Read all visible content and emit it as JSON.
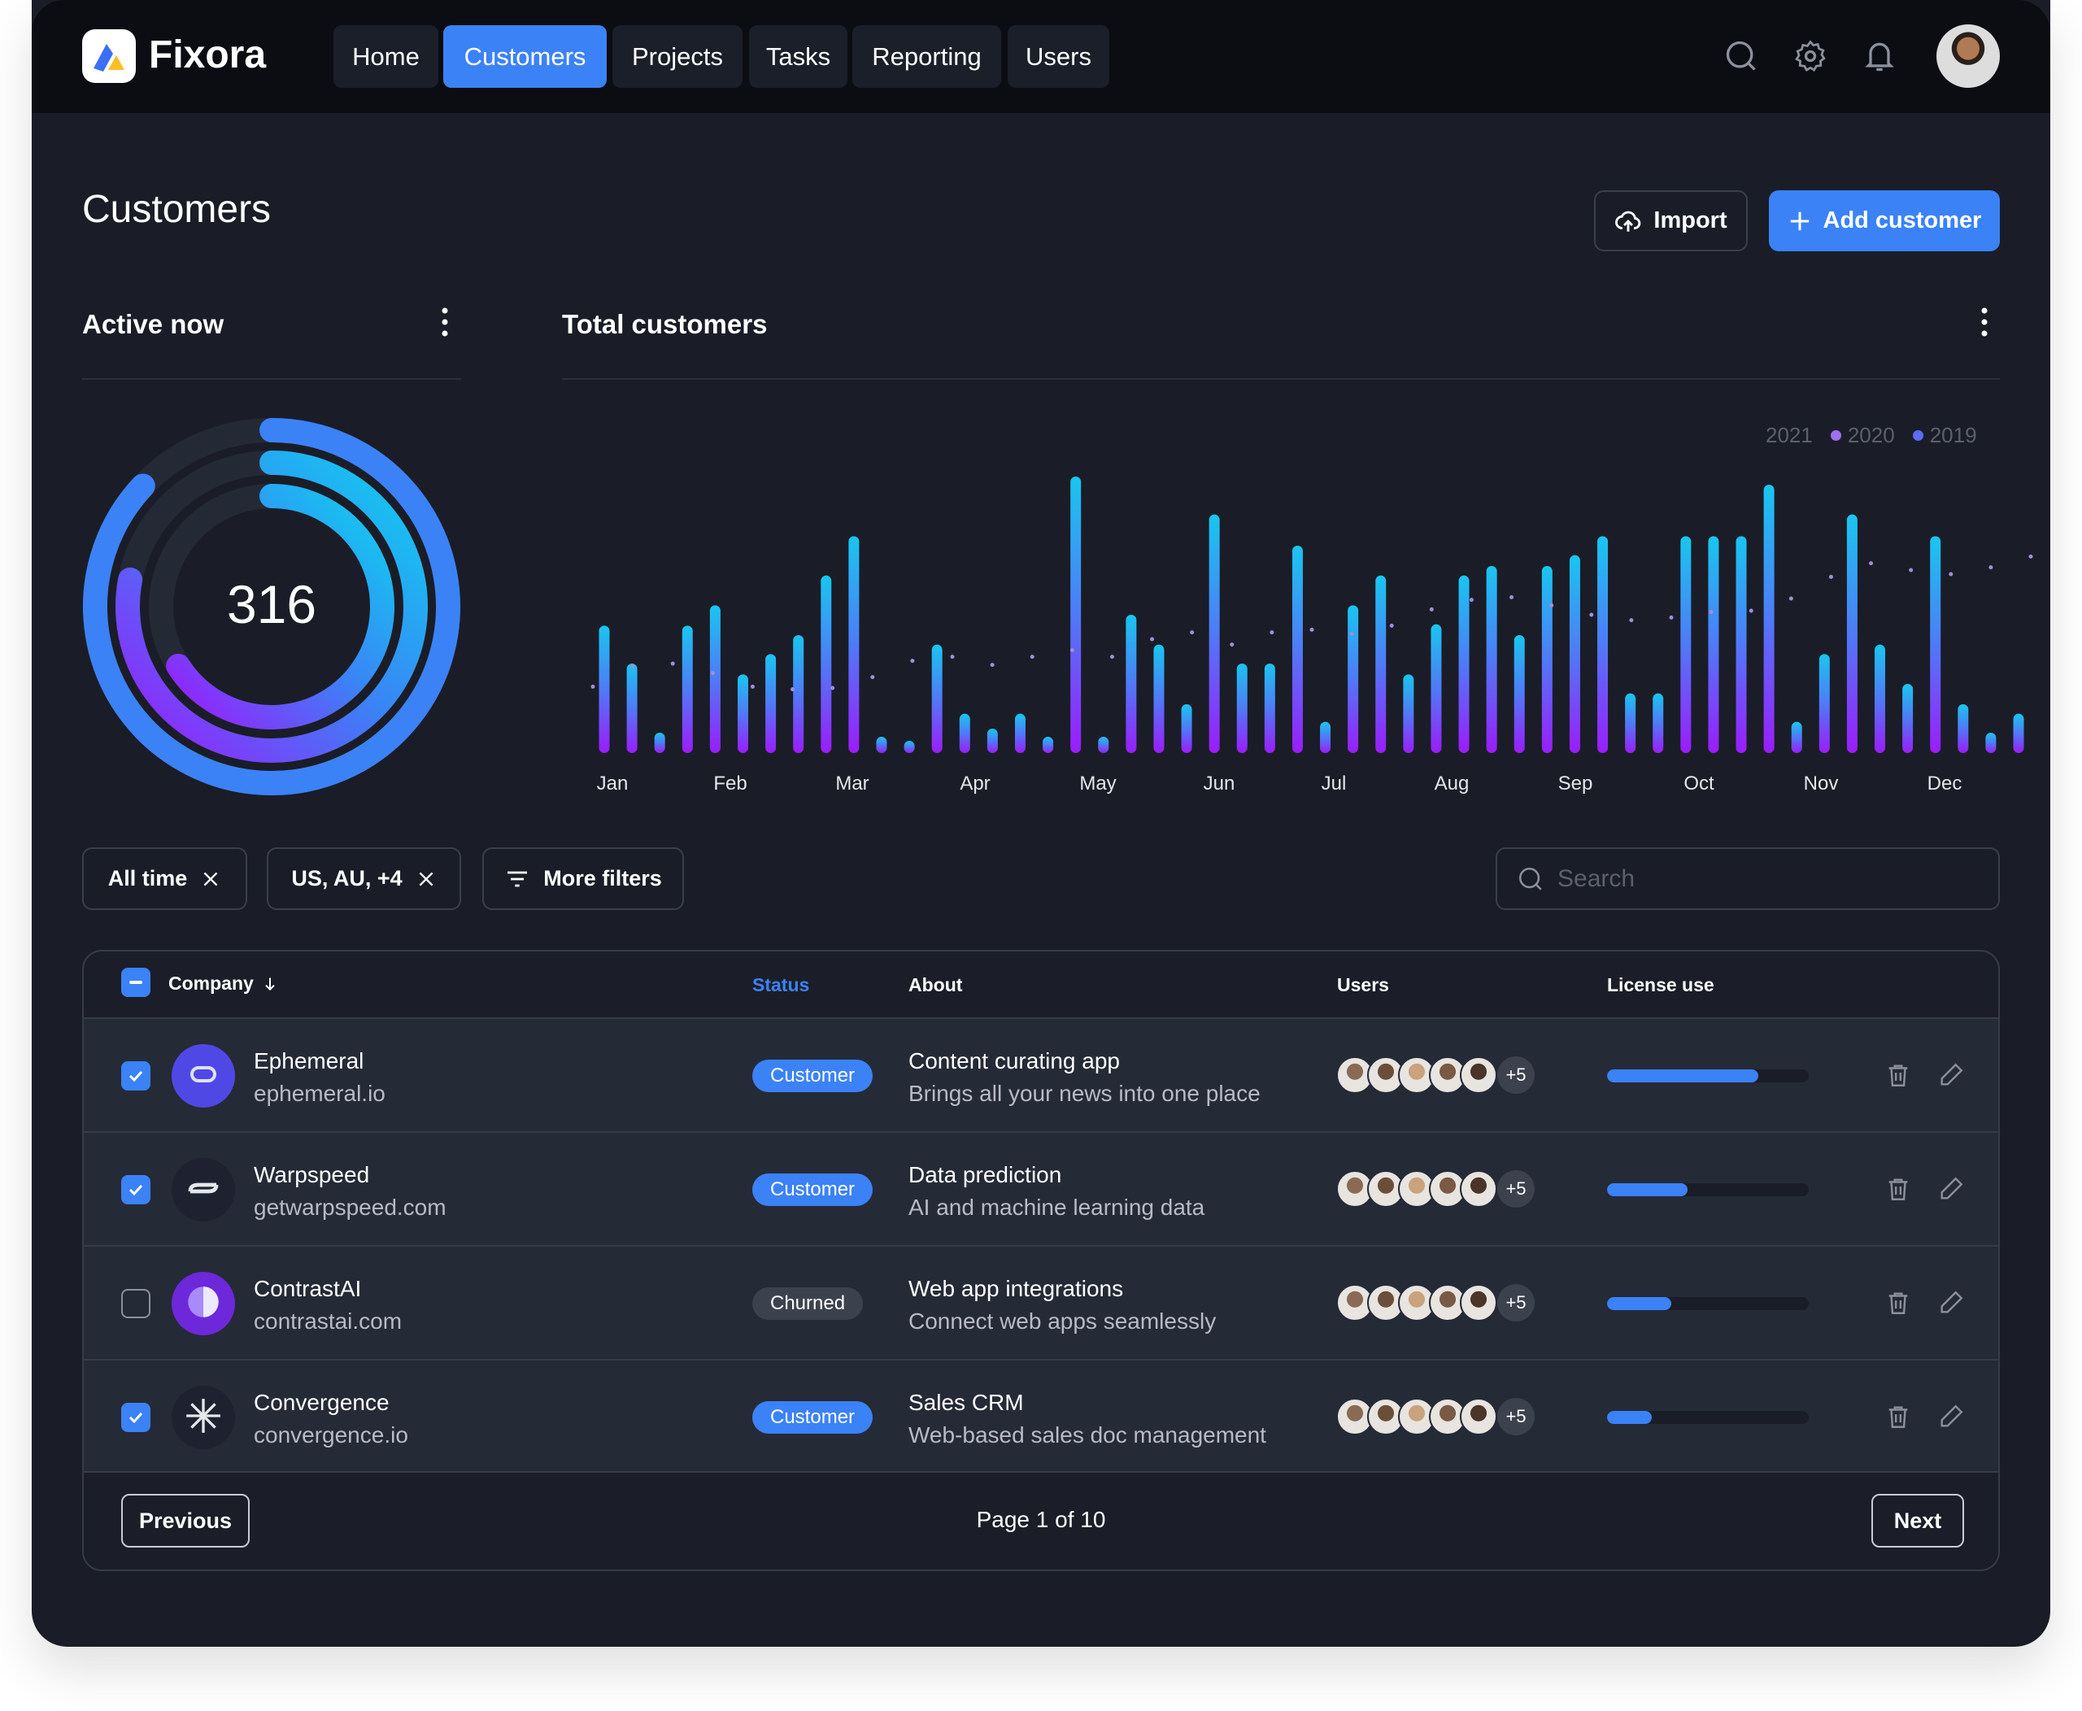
{
  "app": {
    "brand": "Fixora",
    "accent": "#3b82f6"
  },
  "nav": {
    "items": [
      {
        "label": "Home"
      },
      {
        "label": "Customers",
        "active": true
      },
      {
        "label": "Projects"
      },
      {
        "label": "Tasks"
      },
      {
        "label": "Reporting"
      },
      {
        "label": "Users"
      }
    ],
    "icons": [
      "search-icon",
      "settings-icon",
      "bell-icon"
    ]
  },
  "page": {
    "title": "Customers",
    "import_label": "Import",
    "add_label": "Add customer"
  },
  "active_now": {
    "title": "Active now",
    "value": "316",
    "rings": [
      0.87,
      0.78,
      0.66
    ]
  },
  "total_customers": {
    "title": "Total customers"
  },
  "chart_data": {
    "type": "bar",
    "legend": [
      {
        "label": "2021"
      },
      {
        "label": "2020",
        "color": "#a070f0"
      },
      {
        "label": "2019",
        "color": "#5b6cf5"
      }
    ],
    "legend_position": "top-right",
    "months": [
      "Jan",
      "Feb",
      "Mar",
      "Apr",
      "May",
      "Jun",
      "Jul",
      "Aug",
      "Sep",
      "Oct",
      "Nov",
      "Dec"
    ],
    "values": [
      47,
      33,
      7.5,
      47,
      54.5,
      29,
      36.5,
      43.5,
      65.5,
      80,
      6,
      4.5,
      40,
      14.5,
      9,
      14.5,
      6,
      102,
      6,
      51,
      40,
      18,
      88,
      33,
      33,
      76.5,
      11.5,
      54.5,
      65.5,
      29,
      47.5,
      65.5,
      69,
      43.5,
      69,
      73,
      80,
      22,
      22,
      80,
      80,
      80,
      99,
      11.5,
      36.5,
      88,
      40,
      25.5,
      80,
      18,
      7.5,
      14.5
    ],
    "trend": [
      24.5,
      32,
      33,
      29.5,
      24.5,
      23.5,
      24,
      28,
      34,
      35.5,
      32.5,
      35.5,
      38,
      35.5,
      42,
      44.5,
      40,
      44.5,
      45.5,
      44,
      47,
      53,
      56.5,
      57.5,
      54.5,
      51,
      49,
      50,
      52,
      52.5,
      57,
      65,
      70,
      67.5,
      66,
      68.5,
      72.5
    ],
    "grid": false
  },
  "filters": {
    "chips": [
      {
        "label": "All time"
      },
      {
        "label": "US, AU, +4"
      }
    ],
    "more_label": "More filters",
    "search_placeholder": "Search",
    "search_value": ""
  },
  "table": {
    "columns": {
      "company": "Company",
      "status": "Status",
      "about": "About",
      "users": "Users",
      "license": "License use"
    },
    "rows": [
      {
        "name": "Ephemeral",
        "domain": "ephemeral.io",
        "status": "Customer",
        "about_title": "Content curating app",
        "about_desc": "Brings all your news into one place",
        "extra_users": "+5",
        "license": 0.75,
        "checked": true
      },
      {
        "name": "Warpspeed",
        "domain": "getwarpspeed.com",
        "status": "Customer",
        "about_title": "Data prediction",
        "about_desc": "AI and machine learning data",
        "extra_users": "+5",
        "license": 0.4,
        "checked": true
      },
      {
        "name": "ContrastAI",
        "domain": "contrastai.com",
        "status": "Churned",
        "about_title": "Web app integrations",
        "about_desc": "Connect web apps seamlessly",
        "extra_users": "+5",
        "license": 0.32,
        "checked": false
      },
      {
        "name": "Convergence",
        "domain": "convergence.io",
        "status": "Customer",
        "about_title": "Sales CRM",
        "about_desc": "Web-based sales doc management",
        "extra_users": "+5",
        "license": 0.22,
        "checked": true
      }
    ]
  },
  "pagination": {
    "previous": "Previous",
    "page_text": "Page 1 of 10",
    "next": "Next"
  }
}
